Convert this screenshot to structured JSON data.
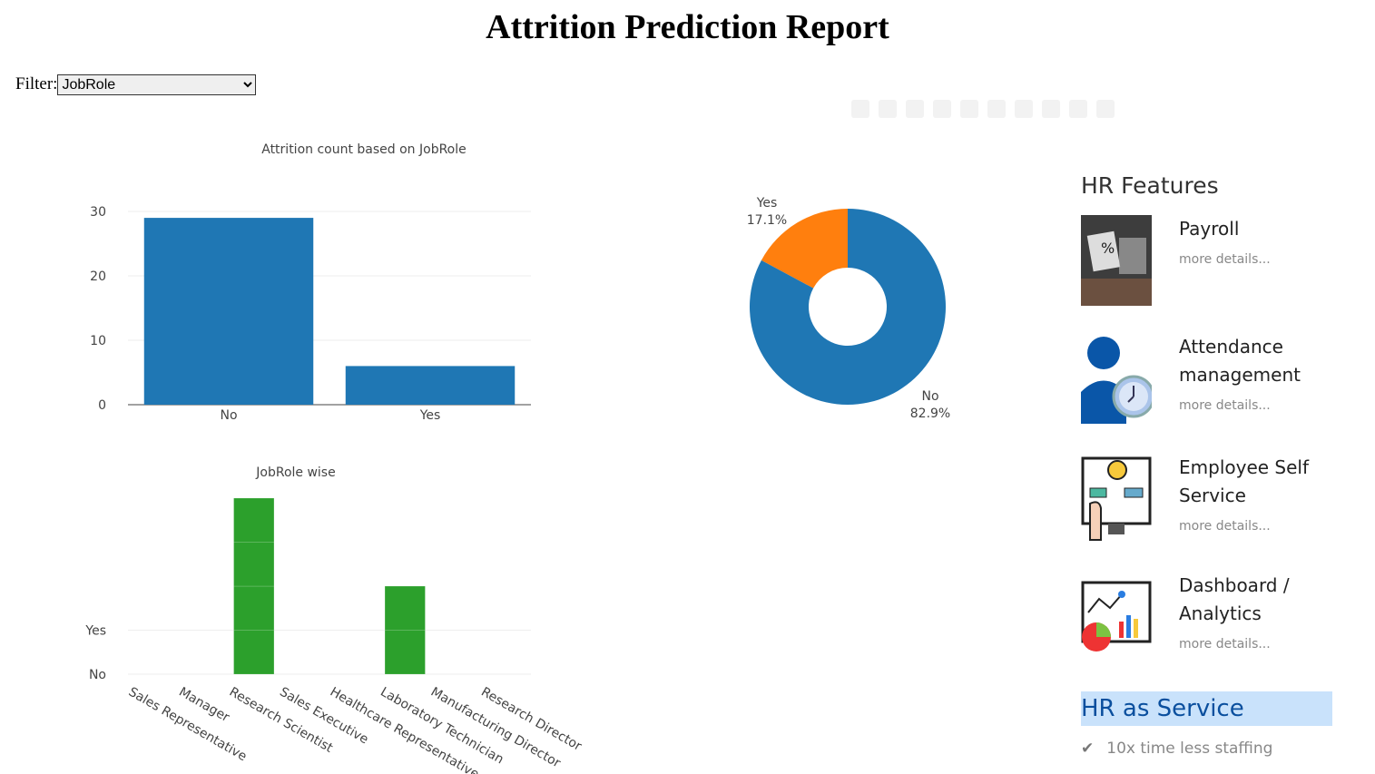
{
  "title": "Attrition Prediction Report",
  "filter": {
    "label": "Filter:",
    "selected": "JobRole"
  },
  "modebar": [
    "camera-icon",
    "zoom-icon",
    "pan-icon",
    "box-select-icon",
    "lasso-icon",
    "zoom-in-icon",
    "zoom-out-icon",
    "autoscale-icon",
    "home-icon",
    "plotly-logo-icon"
  ],
  "chart_data": [
    {
      "type": "bar",
      "title": "Attrition count based on JobRole",
      "categories": [
        "No",
        "Yes"
      ],
      "values": [
        29,
        6
      ],
      "ylim": [
        0,
        30
      ],
      "yticks": [
        "0",
        "10",
        "20",
        "30"
      ],
      "color": "#1f77b4"
    },
    {
      "type": "pie",
      "hole": 0.4,
      "labels": [
        "No",
        "Yes"
      ],
      "values": [
        29,
        6
      ],
      "percent_labels": [
        "82.9%",
        "17.1%"
      ],
      "colors": [
        "#1f77b4",
        "#ff7f0e"
      ]
    },
    {
      "type": "bar",
      "title": "JobRole wise",
      "categories": [
        "Sales Representative",
        "Manager",
        "Research Scientist",
        "Sales Executive",
        "Healthcare Representative",
        "Laboratory Technician",
        "Manufacturing Director",
        "Research Director"
      ],
      "values": [
        0,
        0,
        4,
        0,
        0,
        2,
        0,
        0
      ],
      "yticks": [
        "No",
        "Yes"
      ],
      "color": "#2ca02c"
    }
  ],
  "sidebar": {
    "heading": "HR Features",
    "features": [
      {
        "title": "Payroll",
        "more": "more details..."
      },
      {
        "title": "Attendance management",
        "more": "more details..."
      },
      {
        "title": "Employee Self Service",
        "more": "more details..."
      },
      {
        "title": "Dashboard / Analytics",
        "more": "more details..."
      }
    ],
    "service_heading": "HR as Service",
    "bullets": [
      "10x time less staffing"
    ]
  }
}
